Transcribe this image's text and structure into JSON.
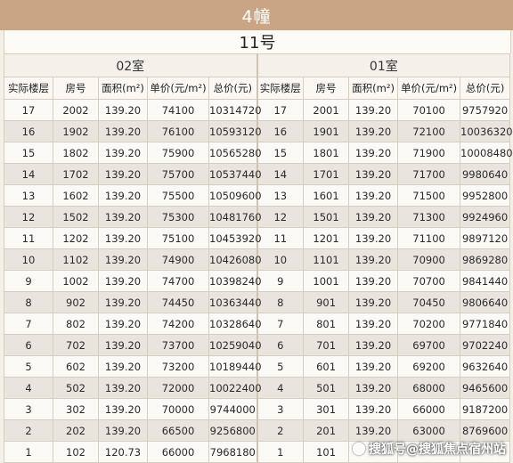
{
  "title": "4幢",
  "subtitle": "11号",
  "rooms": {
    "left": "02室",
    "right": "01室"
  },
  "headers": {
    "floor": "实际楼层",
    "left": [
      "房号",
      "面积(m²)",
      "单价(元/m²)",
      "总价(元)"
    ],
    "right": [
      "房号",
      "面积(m²)",
      "单价(元/m²)",
      "总价(元)"
    ]
  },
  "rows": [
    {
      "floor": "17",
      "l": [
        "2002",
        "139.20",
        "74100",
        "10314720"
      ],
      "r": [
        "2001",
        "139.20",
        "70100",
        "9757920"
      ]
    },
    {
      "floor": "16",
      "l": [
        "1902",
        "139.20",
        "76100",
        "10593120"
      ],
      "r": [
        "1901",
        "139.20",
        "72100",
        "10036320"
      ]
    },
    {
      "floor": "15",
      "l": [
        "1802",
        "139.20",
        "75900",
        "10565280"
      ],
      "r": [
        "1801",
        "139.20",
        "71900",
        "10008480"
      ]
    },
    {
      "floor": "14",
      "l": [
        "1702",
        "139.20",
        "75700",
        "10537440"
      ],
      "r": [
        "1701",
        "139.20",
        "71700",
        "9980640"
      ]
    },
    {
      "floor": "13",
      "l": [
        "1602",
        "139.20",
        "75500",
        "10509600"
      ],
      "r": [
        "1601",
        "139.20",
        "71500",
        "9952800"
      ]
    },
    {
      "floor": "12",
      "l": [
        "1502",
        "139.20",
        "75300",
        "10481760"
      ],
      "r": [
        "1501",
        "139.20",
        "71300",
        "9924960"
      ]
    },
    {
      "floor": "11",
      "l": [
        "1202",
        "139.20",
        "75100",
        "10453920"
      ],
      "r": [
        "1201",
        "139.20",
        "71100",
        "9897120"
      ]
    },
    {
      "floor": "10",
      "l": [
        "1102",
        "139.20",
        "74900",
        "10426080"
      ],
      "r": [
        "1101",
        "139.20",
        "70900",
        "9869280"
      ]
    },
    {
      "floor": "9",
      "l": [
        "1002",
        "139.20",
        "74700",
        "10398240"
      ],
      "r": [
        "1001",
        "139.20",
        "70700",
        "9841440"
      ]
    },
    {
      "floor": "8",
      "l": [
        "902",
        "139.20",
        "74450",
        "10363440"
      ],
      "r": [
        "901",
        "139.20",
        "70450",
        "9806640"
      ]
    },
    {
      "floor": "7",
      "l": [
        "802",
        "139.20",
        "74200",
        "10328640"
      ],
      "r": [
        "801",
        "139.20",
        "70200",
        "9771840"
      ]
    },
    {
      "floor": "6",
      "l": [
        "702",
        "139.20",
        "73700",
        "10259040"
      ],
      "r": [
        "701",
        "139.20",
        "69700",
        "9702240"
      ]
    },
    {
      "floor": "5",
      "l": [
        "602",
        "139.20",
        "73200",
        "10189440"
      ],
      "r": [
        "601",
        "139.20",
        "69200",
        "9632640"
      ]
    },
    {
      "floor": "4",
      "l": [
        "502",
        "139.20",
        "72000",
        "10022400"
      ],
      "r": [
        "501",
        "139.20",
        "68000",
        "9465600"
      ]
    },
    {
      "floor": "3",
      "l": [
        "302",
        "139.20",
        "70000",
        "9744000"
      ],
      "r": [
        "301",
        "139.20",
        "66000",
        "9187200"
      ]
    },
    {
      "floor": "2",
      "l": [
        "202",
        "139.20",
        "66500",
        "9256800"
      ],
      "r": [
        "201",
        "139.20",
        "63000",
        "8769600"
      ]
    },
    {
      "floor": "1",
      "l": [
        "102",
        "120.73",
        "66000",
        "7968180"
      ],
      "r": [
        "101",
        "",
        "",
        ""
      ]
    }
  ],
  "watermark": "搜狐号@搜狐焦点宿州站"
}
